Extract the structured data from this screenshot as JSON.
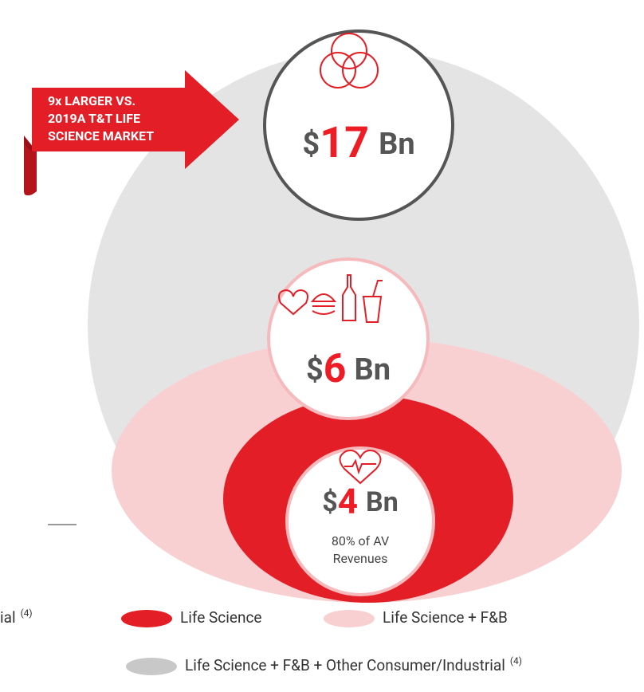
{
  "banner": {
    "lines": [
      "9x LARGER VS.",
      "2019A T&T LIFE",
      "SCIENCE MARKET"
    ]
  },
  "circles": [
    {
      "currency": "$",
      "amount": "17",
      "unit": "Bn"
    },
    {
      "currency": "$",
      "amount": "6",
      "unit": "Bn"
    },
    {
      "currency": "$",
      "amount": "4",
      "unit": "Bn",
      "note": [
        "80% of AV",
        "Revenues"
      ]
    }
  ],
  "legend": {
    "cut_off": {
      "label": "ial",
      "sup": "(4)"
    },
    "items": [
      {
        "label": "Life Science"
      },
      {
        "label": "Life Science + F&B"
      },
      {
        "label": "Life Science + F&B + Other Consumer/Industrial",
        "sup": "(4)"
      }
    ]
  }
}
